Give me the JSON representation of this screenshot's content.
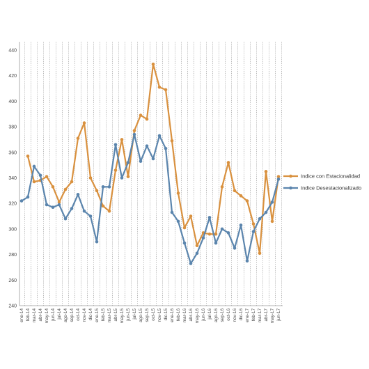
{
  "chart_data": {
    "type": "line",
    "title": "",
    "xlabel": "",
    "ylabel": "",
    "ylim": [
      240,
      440
    ],
    "yticks": [
      240,
      260,
      280,
      300,
      320,
      340,
      360,
      380,
      400,
      420,
      440
    ],
    "grid": {
      "vertical": "dotted",
      "horizontal": "none"
    },
    "legend_position": "right",
    "categories": [
      "ene-14",
      "feb-14",
      "mar-14",
      "abr-14",
      "may-14",
      "jun-14",
      "jul-14",
      "ago-14",
      "sep-14",
      "oct-14",
      "nov-14",
      "dic-14",
      "ene-15",
      "feb-15",
      "mar-15",
      "abr-15",
      "may-15",
      "jun-15",
      "jul-15",
      "ago-15",
      "sep-15",
      "oct-15",
      "nov-15",
      "dic-15",
      "ene-16",
      "feb-16",
      "mar-16",
      "abr-16",
      "may-16",
      "jun-16",
      "jul-16",
      "ago-16",
      "sep-16",
      "oct-16",
      "nov-16",
      "dic-16",
      "ene-17",
      "feb-17",
      "mar-17",
      "abr-17",
      "may-17",
      "jun-17"
    ],
    "series": [
      {
        "name": "Indice con Estacionalidad",
        "color": "#d9913f",
        "values": [
          null,
          357,
          337,
          338,
          341,
          333,
          321,
          331,
          337,
          371,
          383,
          340,
          330,
          318,
          314,
          346,
          370,
          341,
          377,
          389,
          386,
          429,
          411,
          409,
          369,
          328,
          301,
          310,
          287,
          297,
          296,
          296,
          333,
          352,
          330,
          326,
          322,
          304,
          281,
          345,
          306,
          341
        ]
      },
      {
        "name": "Indice Desestacionalizado",
        "color": "#5b85ad",
        "values": [
          322,
          325,
          349,
          342,
          319,
          317,
          319,
          308,
          316,
          327,
          314,
          310,
          290,
          333,
          333,
          366,
          340,
          352,
          374,
          353,
          365,
          355,
          373,
          363,
          313,
          306,
          289,
          273,
          281,
          293,
          309,
          289,
          300,
          297,
          285,
          303,
          275,
          298,
          308,
          313,
          321,
          339
        ]
      }
    ]
  }
}
